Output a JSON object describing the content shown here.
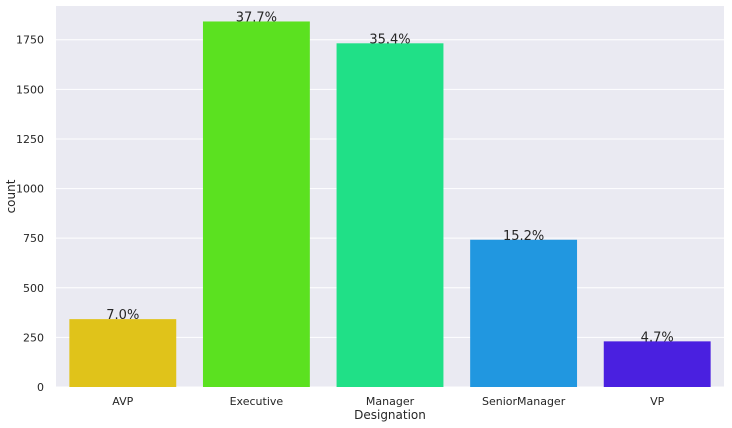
{
  "chart_data": {
    "type": "bar",
    "title": "",
    "xlabel": "Designation",
    "ylabel": "count",
    "categories": [
      "AVP",
      "Executive",
      "Manager",
      "SeniorManager",
      "VP"
    ],
    "values": [
      342,
      1842,
      1732,
      742,
      230
    ],
    "data_labels": [
      "7.0%",
      "37.7%",
      "35.4%",
      "15.2%",
      "4.7%"
    ],
    "colors": [
      "#e0c31a",
      "#5be120",
      "#20e087",
      "#2197e0",
      "#4a20e0"
    ],
    "ylim": [
      0,
      1920
    ],
    "yticks": [
      0,
      250,
      500,
      750,
      1000,
      1250,
      1500,
      1750
    ],
    "ytick_labels": [
      "0",
      "250",
      "500",
      "750",
      "1000",
      "1250",
      "1500",
      "1750"
    ],
    "grid": true,
    "background": "#eaeaf2"
  }
}
